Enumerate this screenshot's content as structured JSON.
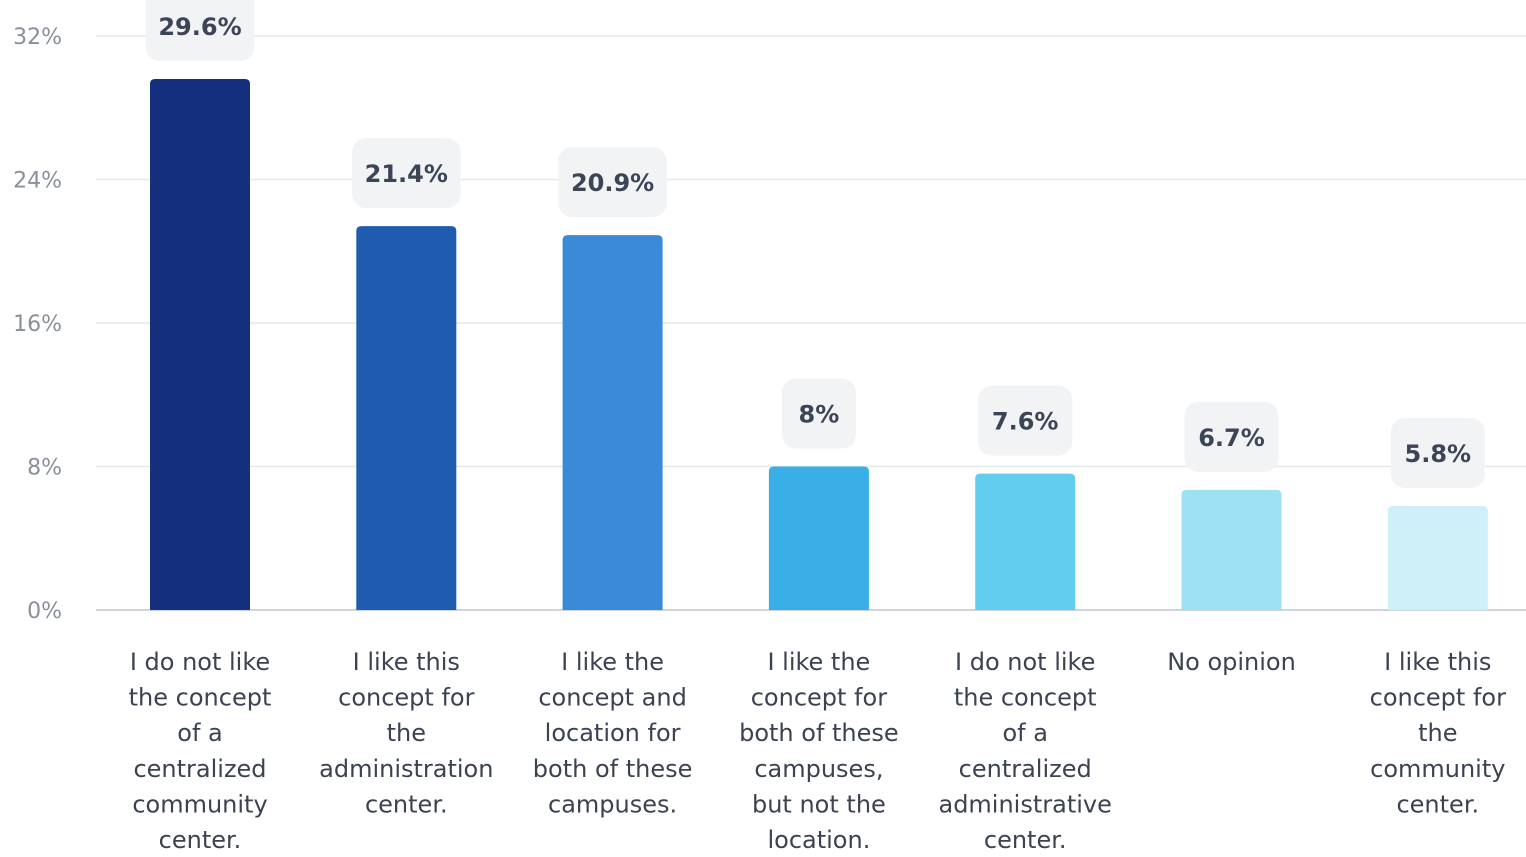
{
  "chart_data": {
    "type": "bar",
    "title": "",
    "xlabel": "",
    "ylabel": "",
    "ylim": [
      0,
      32
    ],
    "grid": true,
    "y_ticks": [
      {
        "value": 0,
        "label": "0%"
      },
      {
        "value": 8,
        "label": "8%"
      },
      {
        "value": 16,
        "label": "16%"
      },
      {
        "value": 24,
        "label": "24%"
      },
      {
        "value": 32,
        "label": "32%"
      }
    ],
    "categories": [
      "I do not like the concept of a centralized community center.",
      "I like this concept for the administration center.",
      "I like the concept and location for both of these campuses.",
      "I like the concept for both of these campuses, but not the location.",
      "I do not like the concept of a centralized administrative center.",
      "No opinion",
      "I like this concept for the community center."
    ],
    "category_lines": [
      [
        "I do not like",
        "the concept",
        "of a",
        "centralized",
        "community",
        "center."
      ],
      [
        "I like this",
        "concept for",
        "the",
        "administration",
        "center."
      ],
      [
        "I like the",
        "concept and",
        "location for",
        "both of these",
        "campuses."
      ],
      [
        "I like the",
        "concept for",
        "both of these",
        "campuses,",
        "but not the",
        "location."
      ],
      [
        "I do not like",
        "the concept",
        "of a",
        "centralized",
        "administrative",
        "center."
      ],
      [
        "No opinion"
      ],
      [
        "I like this",
        "concept for",
        "the",
        "community",
        "center."
      ]
    ],
    "values": [
      29.6,
      21.4,
      20.9,
      8,
      7.6,
      6.7,
      5.8
    ],
    "value_labels": [
      "29.6%",
      "21.4%",
      "20.9%",
      "8%",
      "7.6%",
      "6.7%",
      "5.8%"
    ],
    "colors": [
      "#132f7d",
      "#1f5bae",
      "#3a8ad8",
      "#3aaee6",
      "#63cdf0",
      "#9ee0f4",
      "#cdf0f9"
    ],
    "label_box_color": "#f1f3f5",
    "grid_color": "#e4e7ec",
    "axis_color": "#cfd4db"
  }
}
